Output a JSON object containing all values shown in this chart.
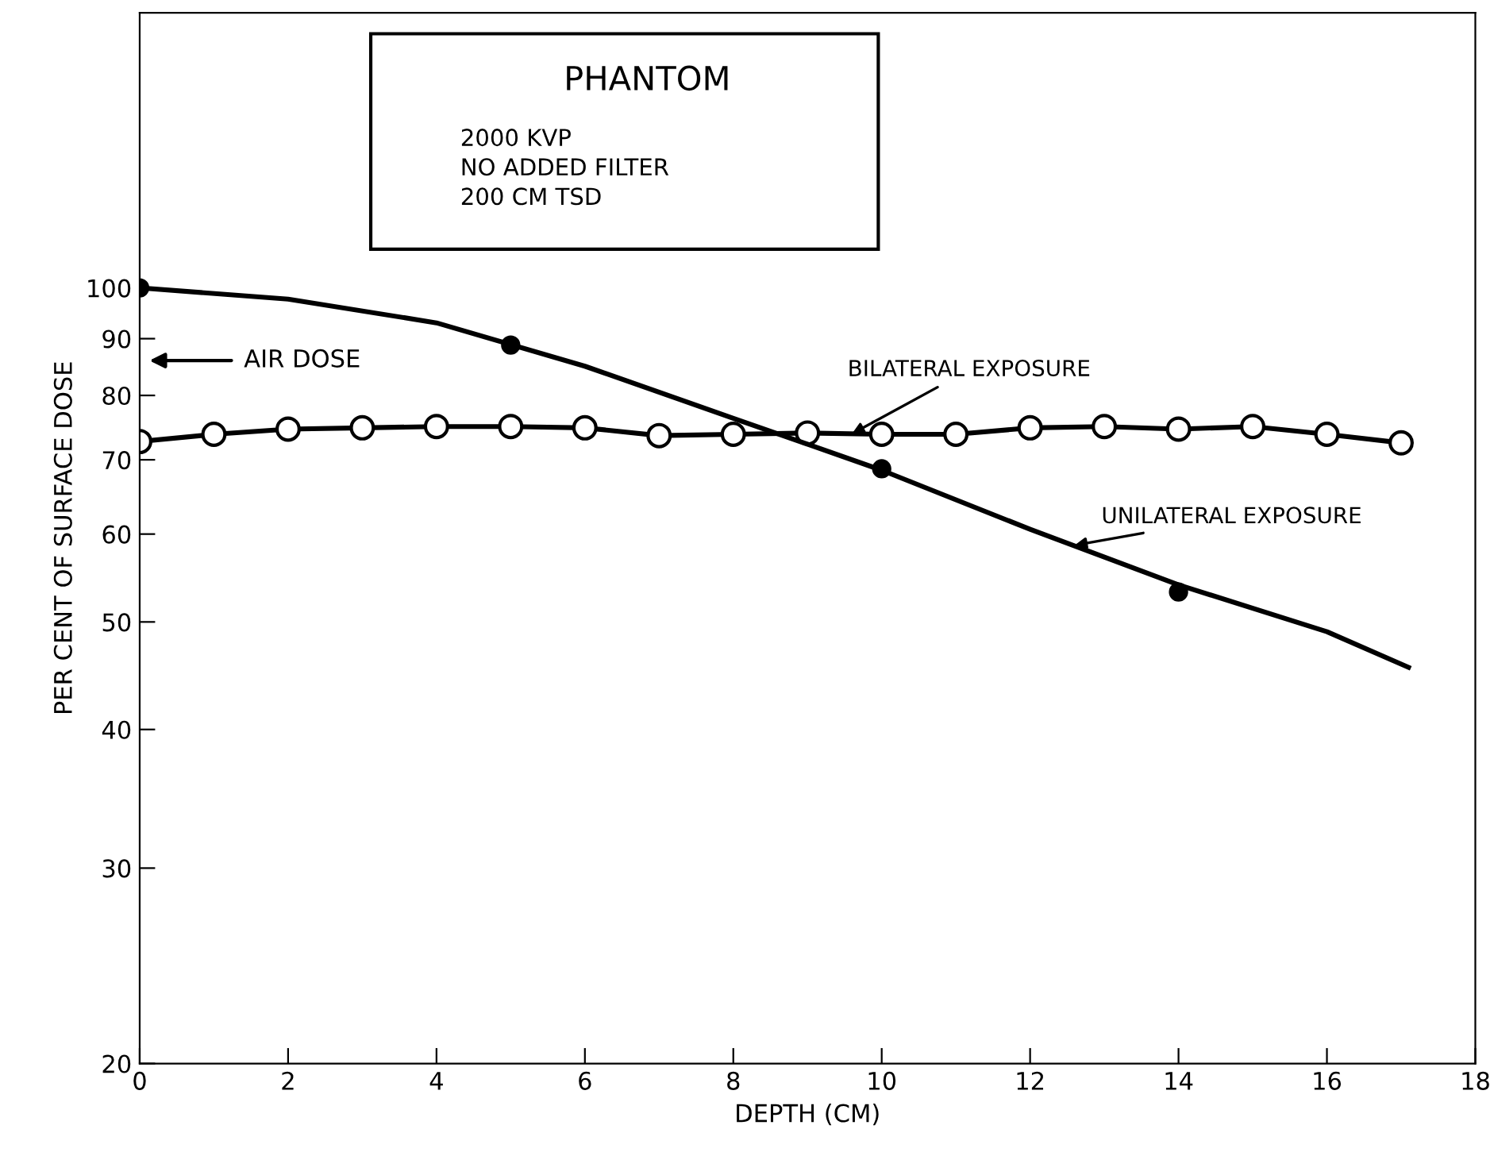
{
  "chart_data": {
    "type": "line",
    "title": "PHANTOM",
    "subtitle": "2000 KVP\nNO ADDED FILTER\n200 CM TSD",
    "xlabel": "DEPTH (CM)",
    "ylabel": "PER CENT OF SURFACE DOSE",
    "log": "y",
    "xlim": [
      0,
      18
    ],
    "xticks": [
      0,
      2,
      4,
      6,
      8,
      10,
      12,
      14,
      16,
      18
    ],
    "ylim": [
      20,
      177
    ],
    "yticks": [
      20,
      30,
      40,
      50,
      60,
      70,
      80,
      90,
      100
    ],
    "grid": false,
    "legend": false,
    "series": [
      {
        "name": "BILATERAL EXPOSURE",
        "marker": "circle",
        "color": "#000000",
        "x": [
          0,
          1,
          2,
          3,
          4,
          5,
          6,
          7,
          8,
          9,
          10,
          11,
          12,
          13,
          14,
          15,
          16,
          17
        ],
        "values": [
          72.7,
          73.8,
          74.6,
          74.8,
          75,
          75,
          74.8,
          73.6,
          73.8,
          74,
          73.8,
          73.8,
          74.8,
          75,
          74.6,
          75,
          73.8,
          72.5
        ]
      },
      {
        "type": "scatter",
        "marker": "circle",
        "color": "#000000",
        "x": [
          0,
          5,
          10,
          14
        ],
        "values": [
          100,
          88.8,
          68.7,
          53.2
        ]
      },
      {
        "name": "UNILATERAL EXPOSURE",
        "type": "line",
        "marker": "none",
        "color": "#000000",
        "x": [
          0,
          2,
          4,
          6,
          8,
          10,
          12,
          14,
          16,
          17.1
        ],
        "values": [
          100,
          97.7,
          93,
          85,
          76.3,
          68.5,
          60.6,
          54,
          49,
          45.5
        ]
      }
    ],
    "annotations": [
      "AIR DOSE"
    ]
  }
}
